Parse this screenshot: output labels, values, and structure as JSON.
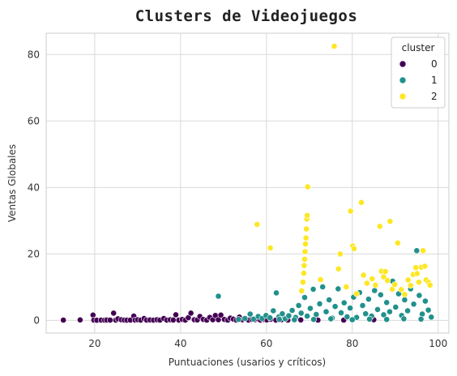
{
  "chart_data": {
    "type": "scatter",
    "title": "Clusters de Videojuegos",
    "xlabel": "Puntuaciones (usarios y críticos)",
    "ylabel": "Ventas Globales",
    "xlim": [
      8.7,
      102.5
    ],
    "ylim": [
      -3.8,
      86.4
    ],
    "xticks": [
      20,
      40,
      60,
      80,
      100
    ],
    "yticks": [
      0,
      20,
      40,
      60,
      80
    ],
    "grid": true,
    "legend": {
      "title": "cluster",
      "placement": "top-right"
    },
    "colors": {
      "0": "#440154",
      "1": "#21918c",
      "2": "#fde725"
    },
    "series": [
      {
        "name": "0",
        "color": "#440154",
        "points": [
          [
            12.7,
            0.1
          ],
          [
            16.6,
            0.15
          ],
          [
            19.6,
            1.6
          ],
          [
            19.8,
            0.1
          ],
          [
            20.5,
            0.05
          ],
          [
            21.5,
            0.1
          ],
          [
            22.3,
            0.08
          ],
          [
            22.8,
            0.12
          ],
          [
            23.6,
            0.1
          ],
          [
            24.4,
            2.2
          ],
          [
            24.9,
            0.1
          ],
          [
            25.4,
            0.5
          ],
          [
            26.2,
            0.2
          ],
          [
            26.9,
            0.1
          ],
          [
            27.5,
            0.08
          ],
          [
            28.3,
            0.1
          ],
          [
            29.1,
            1.3
          ],
          [
            29.4,
            0.1
          ],
          [
            30.0,
            0.2
          ],
          [
            30.7,
            0.1
          ],
          [
            31.5,
            0.6
          ],
          [
            32.1,
            0.1
          ],
          [
            32.9,
            0.15
          ],
          [
            33.7,
            0.08
          ],
          [
            34.5,
            0.2
          ],
          [
            35.2,
            0.1
          ],
          [
            36.1,
            0.6
          ],
          [
            36.8,
            0.1
          ],
          [
            37.6,
            0.2
          ],
          [
            38.3,
            0.12
          ],
          [
            38.9,
            1.7
          ],
          [
            39.6,
            0.1
          ],
          [
            40.4,
            0.3
          ],
          [
            41.1,
            0.1
          ],
          [
            41.8,
            0.8
          ],
          [
            42.4,
            2.2
          ],
          [
            43.2,
            0.2
          ],
          [
            43.9,
            0.15
          ],
          [
            44.5,
            1.2
          ],
          [
            45.3,
            0.3
          ],
          [
            46.1,
            0.1
          ],
          [
            46.8,
            0.9
          ],
          [
            47.5,
            0.2
          ],
          [
            48.1,
            1.5
          ],
          [
            48.8,
            0.2
          ],
          [
            49.4,
            1.6
          ],
          [
            50.2,
            0.3
          ],
          [
            51.0,
            0.1
          ],
          [
            51.6,
            0.7
          ],
          [
            52.3,
            0.4
          ],
          [
            53.0,
            0.1
          ],
          [
            53.7,
            1.0
          ],
          [
            54.4,
            0.2
          ],
          [
            55.1,
            0.5
          ],
          [
            55.8,
            0.1
          ],
          [
            56.6,
            0.3
          ],
          [
            57.3,
            0.2
          ],
          [
            58.0,
            0.5
          ],
          [
            58.6,
            0.1
          ],
          [
            59.4,
            0.3
          ],
          [
            60.1,
            0.15
          ],
          [
            61.0,
            0.4
          ],
          [
            62.2,
            0.1
          ],
          [
            63.5,
            0.2
          ],
          [
            65.0,
            0.1
          ],
          [
            68.0,
            0.15
          ],
          [
            72.0,
            0.1
          ],
          [
            78.0,
            0.1
          ],
          [
            85.0,
            0.2
          ]
        ]
      },
      {
        "name": "1",
        "color": "#21918c",
        "points": [
          [
            48.8,
            7.3
          ],
          [
            53.5,
            0.3
          ],
          [
            55.0,
            0.6
          ],
          [
            56.2,
            1.9
          ],
          [
            57.0,
            0.4
          ],
          [
            58.1,
            1.2
          ],
          [
            59.0,
            0.6
          ],
          [
            59.9,
            1.5
          ],
          [
            60.8,
            0.8
          ],
          [
            61.6,
            2.9
          ],
          [
            62.3,
            8.3
          ],
          [
            62.9,
            1.1
          ],
          [
            63.7,
            2.0
          ],
          [
            64.4,
            0.5
          ],
          [
            65.2,
            1.4
          ],
          [
            66.0,
            3.0
          ],
          [
            66.8,
            0.9
          ],
          [
            67.5,
            4.5
          ],
          [
            68.1,
            2.2
          ],
          [
            68.9,
            6.9
          ],
          [
            69.5,
            1.3
          ],
          [
            70.2,
            3.6
          ],
          [
            70.9,
            9.4
          ],
          [
            71.6,
            1.8
          ],
          [
            72.4,
            5.0
          ],
          [
            73.1,
            10.1
          ],
          [
            73.9,
            2.6
          ],
          [
            74.6,
            6.2
          ],
          [
            75.3,
            0.7
          ],
          [
            76.0,
            4.2
          ],
          [
            76.7,
            9.5
          ],
          [
            77.4,
            2.3
          ],
          [
            78.1,
            5.3
          ],
          [
            78.8,
            1.1
          ],
          [
            79.5,
            3.7
          ],
          [
            80.3,
            7.0
          ],
          [
            81.0,
            0.9
          ],
          [
            81.7,
            8.4
          ],
          [
            82.4,
            4.5
          ],
          [
            83.1,
            2.0
          ],
          [
            83.8,
            6.4
          ],
          [
            84.5,
            1.3
          ],
          [
            85.2,
            9.0
          ],
          [
            85.9,
            3.3
          ],
          [
            86.6,
            7.7
          ],
          [
            87.3,
            1.7
          ],
          [
            88.0,
            5.4
          ],
          [
            88.7,
            2.6
          ],
          [
            89.4,
            11.8
          ],
          [
            90.1,
            4.0
          ],
          [
            90.8,
            8.0
          ],
          [
            91.5,
            1.5
          ],
          [
            92.2,
            6.2
          ],
          [
            92.9,
            2.9
          ],
          [
            93.6,
            9.5
          ],
          [
            94.3,
            4.9
          ],
          [
            95.0,
            21.0
          ],
          [
            95.6,
            7.5
          ],
          [
            96.3,
            1.9
          ],
          [
            97.0,
            5.8
          ],
          [
            97.7,
            3.1
          ],
          [
            98.4,
            1.0
          ],
          [
            71.0,
            0.3
          ],
          [
            75.0,
            0.5
          ],
          [
            80.0,
            0.2
          ],
          [
            84.0,
            0.4
          ],
          [
            88.0,
            0.3
          ],
          [
            92.0,
            0.5
          ],
          [
            96.0,
            0.4
          ],
          [
            66.5,
            0.2
          ],
          [
            63.0,
            0.3
          ]
        ]
      },
      {
        "name": "2",
        "color": "#fde725",
        "points": [
          [
            57.8,
            28.9
          ],
          [
            60.9,
            21.8
          ],
          [
            68.2,
            8.9
          ],
          [
            68.5,
            11.5
          ],
          [
            68.7,
            14.2
          ],
          [
            68.8,
            16.5
          ],
          [
            68.9,
            18.4
          ],
          [
            69.0,
            20.7
          ],
          [
            69.1,
            23.0
          ],
          [
            69.2,
            24.8
          ],
          [
            69.3,
            27.5
          ],
          [
            69.4,
            30.5
          ],
          [
            69.5,
            31.6
          ],
          [
            69.6,
            40.2
          ],
          [
            72.6,
            12.3
          ],
          [
            75.8,
            82.5
          ],
          [
            76.8,
            15.5
          ],
          [
            77.2,
            20.0
          ],
          [
            78.6,
            10.1
          ],
          [
            79.6,
            32.9
          ],
          [
            80.1,
            22.4
          ],
          [
            80.4,
            21.6
          ],
          [
            81.0,
            8.0
          ],
          [
            82.1,
            35.5
          ],
          [
            82.6,
            13.6
          ],
          [
            83.4,
            11.2
          ],
          [
            84.6,
            12.5
          ],
          [
            85.4,
            10.6
          ],
          [
            86.4,
            28.3
          ],
          [
            86.8,
            14.8
          ],
          [
            87.3,
            13.1
          ],
          [
            87.7,
            14.7
          ],
          [
            88.2,
            12.0
          ],
          [
            88.8,
            29.8
          ],
          [
            89.3,
            9.4
          ],
          [
            89.9,
            10.8
          ],
          [
            90.6,
            23.3
          ],
          [
            91.4,
            9.3
          ],
          [
            92.2,
            7.8
          ],
          [
            93.0,
            12.2
          ],
          [
            93.6,
            10.5
          ],
          [
            94.2,
            13.8
          ],
          [
            94.8,
            15.9
          ],
          [
            95.1,
            14.1
          ],
          [
            95.5,
            11.5
          ],
          [
            96.1,
            16.0
          ],
          [
            96.5,
            21.0
          ],
          [
            96.9,
            16.3
          ],
          [
            97.2,
            12.2
          ],
          [
            97.8,
            11.4
          ],
          [
            98.1,
            10.6
          ]
        ]
      }
    ]
  }
}
